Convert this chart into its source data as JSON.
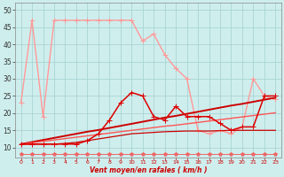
{
  "background_color": "#ceeeed",
  "grid_color": "#aad4d4",
  "xlabel": "Vent moyen/en rafales ( km/h )",
  "xlabel_color": "#cc0000",
  "xlim": [
    -0.5,
    23.5
  ],
  "ylim": [
    7,
    52
  ],
  "yticks": [
    10,
    15,
    20,
    25,
    30,
    35,
    40,
    45,
    50
  ],
  "xticks": [
    0,
    1,
    2,
    3,
    4,
    5,
    6,
    7,
    8,
    9,
    10,
    11,
    12,
    13,
    14,
    15,
    16,
    17,
    18,
    19,
    20,
    21,
    22,
    23
  ],
  "series_pink_top": {
    "x": [
      0,
      1,
      2,
      3,
      4,
      5,
      6,
      7,
      8,
      9,
      10,
      11,
      12,
      13,
      14,
      15,
      16,
      17,
      18,
      19,
      20,
      21,
      22,
      23
    ],
    "y": [
      23,
      47,
      19,
      47,
      47,
      47,
      47,
      47,
      47,
      47,
      47,
      41,
      43,
      37,
      33,
      30,
      15,
      14,
      15,
      14,
      16,
      30,
      25,
      24
    ],
    "color": "#ff9999",
    "linewidth": 1.0,
    "marker": "+",
    "markersize": 4
  },
  "series_red_jagged": {
    "x": [
      0,
      1,
      2,
      3,
      4,
      5,
      6,
      7,
      8,
      9,
      10,
      11,
      12,
      13,
      14,
      15,
      16,
      17,
      18,
      19,
      20,
      21,
      22,
      23
    ],
    "y": [
      11,
      11,
      11,
      11,
      11,
      11,
      12,
      14,
      18,
      23,
      26,
      25,
      19,
      18,
      22,
      19,
      19,
      19,
      17,
      15,
      16,
      16,
      25,
      25
    ],
    "color": "#dd0000",
    "linewidth": 1.1,
    "marker": "+",
    "markersize": 4
  },
  "series_diag1": {
    "x": [
      0,
      1,
      2,
      3,
      4,
      5,
      6,
      7,
      8,
      9,
      10,
      11,
      12,
      13,
      14,
      15,
      16,
      17,
      18,
      19,
      20,
      21,
      22,
      23
    ],
    "y": [
      11,
      11.6,
      12.2,
      12.8,
      13.4,
      14,
      14.6,
      15.1,
      15.7,
      16.3,
      16.9,
      17.5,
      18.1,
      18.7,
      19.2,
      19.8,
      20.4,
      21,
      21.6,
      22.2,
      22.7,
      23.3,
      23.9,
      24.5
    ],
    "color": "#cc0000",
    "linewidth": 1.4
  },
  "series_diag2": {
    "x": [
      0,
      1,
      2,
      3,
      4,
      5,
      6,
      7,
      8,
      9,
      10,
      11,
      12,
      13,
      14,
      15,
      16,
      17,
      18,
      19,
      20,
      21,
      22,
      23
    ],
    "y": [
      11,
      11.4,
      11.8,
      12.2,
      12.6,
      13,
      13.4,
      13.8,
      14.2,
      14.6,
      15,
      15.4,
      15.8,
      16.2,
      16.5,
      16.9,
      17.3,
      17.7,
      18.1,
      18.5,
      18.9,
      19.3,
      19.7,
      20.1
    ],
    "color": "#ff5555",
    "linewidth": 1.0
  },
  "series_flat": {
    "x": [
      0,
      1,
      2,
      3,
      4,
      5,
      6,
      7,
      8,
      9,
      10,
      11,
      12,
      13,
      14,
      15,
      16,
      17,
      18,
      19,
      20,
      21,
      22,
      23
    ],
    "y": [
      11,
      11,
      11,
      11,
      11.2,
      11.5,
      12,
      12.5,
      13,
      13.5,
      14,
      14.2,
      14.4,
      14.6,
      14.7,
      14.8,
      14.8,
      14.8,
      14.9,
      15,
      15,
      15,
      15,
      15
    ],
    "color": "#cc0000",
    "linewidth": 0.9
  },
  "series_bottom": {
    "x": [
      0,
      1,
      2,
      3,
      4,
      5,
      6,
      7,
      8,
      9,
      10,
      11,
      12,
      13,
      14,
      15,
      16,
      17,
      18,
      19,
      20,
      21,
      22,
      23
    ],
    "y": [
      8.2,
      8.2,
      8.2,
      8.2,
      8.2,
      8.2,
      8.2,
      8.2,
      8.2,
      8.2,
      8.2,
      8.2,
      8.2,
      8.2,
      8.2,
      8.2,
      8.2,
      8.2,
      8.2,
      8.2,
      8.2,
      8.2,
      8.2,
      8.2
    ],
    "color": "#ee6666",
    "linewidth": 0.7,
    "marker": "*",
    "markersize": 3
  }
}
